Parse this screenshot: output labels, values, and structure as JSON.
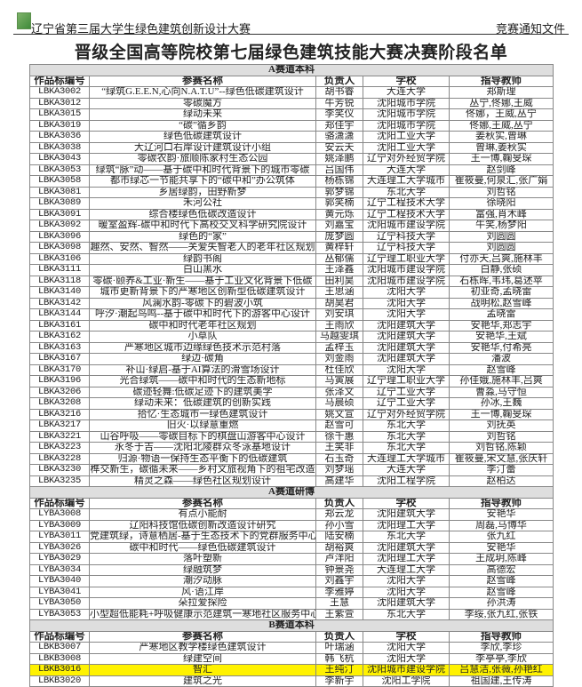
{
  "header": {
    "left": "辽宁省第三届大学生绿色建筑创新设计大赛",
    "right": "竞赛通知文件",
    "logo_icon": "competition-logo"
  },
  "title": "晋级全国高等院校第七届绿色建筑技能大赛决赛阶段名单",
  "columns": [
    "作品标编号",
    "参赛名称",
    "负责人",
    "学校",
    "指导教师"
  ],
  "highlight_color": "#fff200",
  "highlighted_row": "LBKB3016",
  "sections": [
    {
      "title": "A赛道本科",
      "rows": [
        [
          "LBKA3002",
          "“绿筑G.E.E.N,心向N.A.T.U”--绿色低碳建筑设计",
          "胡书睿",
          "大连大学",
          "郑斯理"
        ],
        [
          "LBKA3012",
          "零碳魔方",
          "牛芳锐",
          "沈阳城市学院",
          "丛宁,佟娜,王威"
        ],
        [
          "LBKA3015",
          "绿动未来",
          "李笑仪",
          "沈阳城市学院",
          "佟娜，王威,丛宁"
        ],
        [
          "LBKA3019",
          "“碳”循乡韵",
          "郑佳宇",
          "沈阳城市学院",
          "佟娜,王威,丛宁"
        ],
        [
          "LBKA3036",
          "绿色低碳建筑设计",
          "骆潇潇",
          "沈阳工业大学",
          "姜秋实,曾琳"
        ],
        [
          "LBKA3038",
          "大辽河口右岸设计建筑设计小组",
          "安云天",
          "沈阳工业大学",
          "曾琳,姜秋实"
        ],
        [
          "LBKA3043",
          "零碳农韵·旅顺陈家村生态公园",
          "姚泽鹏",
          "辽宁对外经贸学院",
          "王一博,鞠旻琛"
        ],
        [
          "LBKA3053",
          "绿筑“脉”动——基于碳中和时代背景下的城市零碳",
          "吕国伟",
          "大连大学",
          "赵剑峰"
        ],
        [
          "LBKA3058",
          "都市绿芯一节能共享下的“碳中和”办公筑体",
          "杨栋锦",
          "大连理工大学城市",
          "崔筱曼,何泉汇,张广娟"
        ],
        [
          "LBKA3081",
          "乡居绿韵，田野新梦",
          "郭梦锦",
          "东北大学",
          "刘哲铭"
        ],
        [
          "LBKA3089",
          "禾河公社",
          "郭笑楠",
          "辽宁工程技术大学",
          "徐晓阳"
        ],
        [
          "LBKA3091",
          "综合楼绿色低碳改造设计",
          "黄元烁",
          "辽宁工程技术大学",
          "富强,肖木峰"
        ],
        [
          "LBKA3092",
          "暖室盈辉-碳中和时代下高校交叉科学研究院设计",
          "刘嘉宝",
          "沈阳城市建设学院",
          "牛笑,杨梦阳"
        ],
        [
          "LBKA3096",
          "绿色的“家”",
          "庞梦圆",
          "辽宁科技大学",
          "刘圆圆"
        ],
        [
          "LBKA3098",
          "趣然、安然、智然——关爱失智老人的老年社区规划",
          "黄梓轩",
          "辽宁科技大学",
          "刘圆圆"
        ],
        [
          "LBKA3106",
          "绿韵书阁",
          "丛郁儒",
          "辽宁理工职业大学",
          "付亦天,吕爽,施林丰"
        ],
        [
          "LBKA3111",
          "白山黑水",
          "王泽鑫",
          "沈阳城市建设学院",
          "白静,张硕"
        ],
        [
          "LBKA3118",
          "零碳·颐养&工业·新生——基于工业文化背景下低碳",
          "田利昊",
          "沈阳城市建设学院",
          "石栋晖,韦玮,葛述苹"
        ],
        [
          "LBKA3140",
          "城市更新背景下的严寒地区创新型低碳建筑设计",
          "王思涵",
          "沈阳大学",
          "初亚奇,孟晓雷"
        ],
        [
          "LBKA3142",
          "风澜水韵-零碳下的碧波小筑",
          "胡昊君",
          "沈阳大学",
          "战明松,赵雪峰"
        ],
        [
          "LBKA3144",
          "呼汐·潮起鸟鸣--基于碳中和时代下的游客中心设计",
          "刘安琪",
          "沈阳大学",
          "孟晓雷"
        ],
        [
          "LBKA3161",
          "碳中和时代老年社区规划",
          "王雨欣",
          "沈阳建筑大学",
          "安艳华,郑志宇"
        ],
        [
          "LBKA3162",
          "小草队",
          "马越雯琪",
          "沈阳建筑大学",
          "安艳华,王斌"
        ],
        [
          "LBKA3163",
          "严寒地区城市边缘绿色技术示范村落",
          "孟梓玉",
          "沈阳建筑大学",
          "安艳华,付希亮"
        ],
        [
          "LBKA3167",
          "绿边·碳角",
          "刘金雨",
          "沈阳建筑大学",
          "潘波"
        ],
        [
          "LBKA3170",
          "补山·绿启-基于AI算法的滑雪场设计",
          "杜佳欣",
          "沈阳大学",
          "赵雪峰"
        ],
        [
          "LBKA3196",
          "光合绿筑——碳中和时代的生态新地标",
          "马寅展",
          "辽宁理工职业大学",
          "孙佳娥,施林丰,吕爽"
        ],
        [
          "LBKA3206",
          "碳迹轻舞:低碳足迹下的建筑美学",
          "张泽文",
          "辽宁工业大学",
          "曹淼,马守恒"
        ],
        [
          "LBKA3208",
          "绿动未来：低碳建筑的创新实践",
          "马晨硕",
          "辽宁工业大学",
          "孙冰,王巍"
        ],
        [
          "LBKA3216",
          "拾忆·生态城市一绿色建筑设计",
          "姚文宣",
          "辽宁对外经贸学院",
          "王一博,鞠旻琛"
        ],
        [
          "LBKA3217",
          "旧火·以绿意重燃",
          "赵雪可",
          "东北大学",
          "刘抚英"
        ],
        [
          "LBKA3221",
          "山谷呼吸——零碳目标下的棋盘山游客中心设计",
          "徐千惠",
          "东北大学",
          "刘哲铭"
        ],
        [
          "LBKA3223",
          "永冬于吉——沈阳北陵群众冬泳基地设计",
          "王笑非",
          "东北大学",
          "刘哲铭,陈颖"
        ],
        [
          "LBKA3228",
          "归源·物语一保持生态平衡下的低碳建筑",
          "石玉奇",
          "大连理工大学城市",
          "崔筱曼,宋文慧,张庆轩"
        ],
        [
          "LBKA3230",
          "榫交新生，碳循未来——乡村文旅视角下的祖宅改造",
          "刘梦瑶",
          "大连大学",
          "李汀蕾"
        ],
        [
          "LBKA3235",
          "精灵之森——绿色社区规划设计",
          "高建华",
          "沈阳工程学院",
          "赵柏达"
        ]
      ]
    },
    {
      "title": "A赛道研博",
      "rows": [
        [
          "LYBA3008",
          "有点小能耐",
          "郑云龙",
          "沈阳建筑大学",
          "安艳华"
        ],
        [
          "LYBA3009",
          "辽阳科技馆低碳创新改造设计研究",
          "孙小雪",
          "沈阳理工大学",
          "周磊,马博华"
        ],
        [
          "LYBA3011",
          "党建筑绿，诗意栖居-基于生态技术下的党群服务中心",
          "陆安楠",
          "东北大学",
          "张九红"
        ],
        [
          "LYBA3026",
          "碳中和时代——绿色低碳建筑设计",
          "胡裕爽",
          "沈阳建筑大学",
          "安艳华"
        ],
        [
          "LYBA3029",
          "落叶塑新",
          "卢洋阳",
          "沈阳理工大学",
          "王成玥,陈峰"
        ],
        [
          "LYBA3034",
          "绿融筑梦",
          "钟景尧",
          "大连理工大学",
          "高德宏"
        ],
        [
          "LYBA3040",
          "潮汐动脉",
          "刘鑫宇",
          "沈阳大学",
          "赵雪峰"
        ],
        [
          "LYBA3041",
          "风·语江岸",
          "李雅婷",
          "沈阳大学",
          "赵雪峰"
        ],
        [
          "LYBA3050",
          "朵拉爱探险",
          "王慧",
          "沈阳建筑大学",
          "孙洪涛"
        ],
        [
          "LYBA3053",
          "小型超低能耗+呼吸健康示范建筑一寒地社区服务中心",
          "王紫萱",
          "东北大学",
          "李绥,张九红,张铁"
        ]
      ]
    },
    {
      "title": "B赛道本科",
      "rows": [
        [
          "LBKB3007",
          "严寒地区教学楼绿色建筑设计",
          "叶瑞涵",
          "沈阳大学",
          "李欣,李珍"
        ],
        [
          "LBKB3008",
          "绿建空间",
          "韩飞杭",
          "沈阳大学",
          "李亭亭,李欣"
        ],
        [
          "LBKB3016",
          "智汇",
          "王纯汀",
          "沈阳城市建设学院",
          "吕慧洁,张薇,孙艳红"
        ],
        [
          "LBKB3020",
          "建筑之光",
          "李新宇",
          "沈阳工学院",
          "祖国建,王传涛"
        ]
      ]
    }
  ]
}
